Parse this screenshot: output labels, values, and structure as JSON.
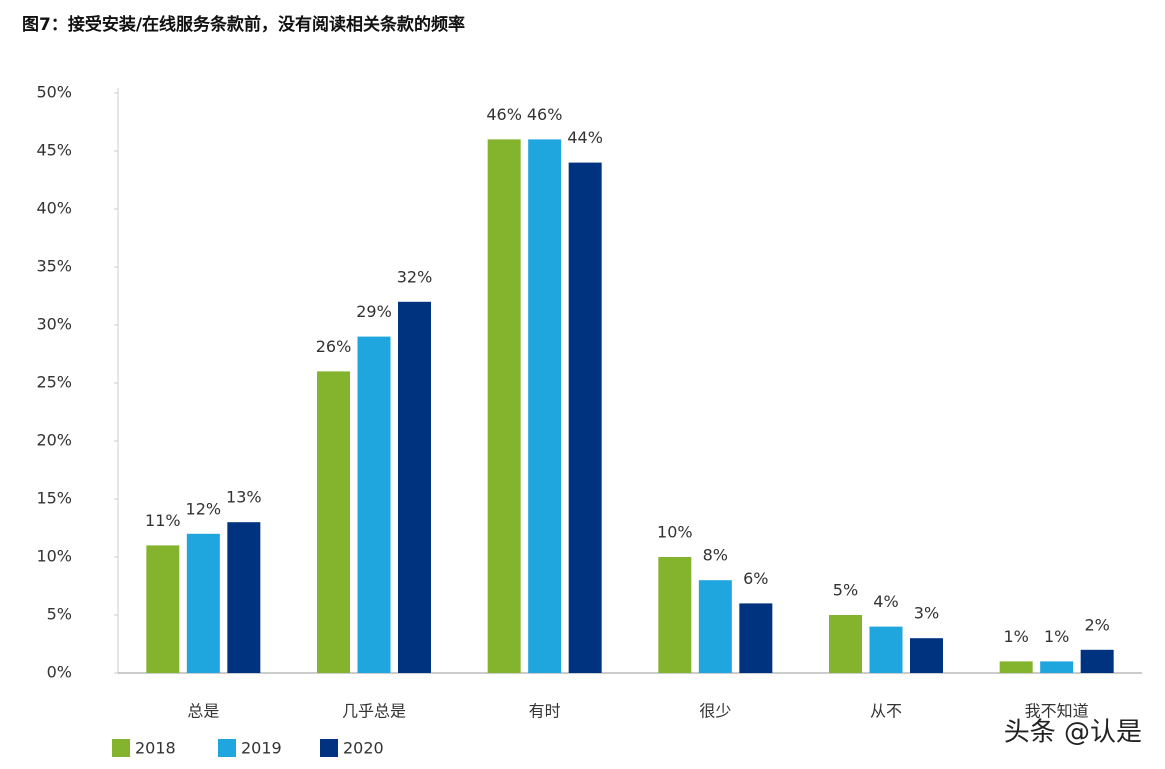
{
  "chart_data": {
    "type": "bar",
    "title": "图7：接受安装/在线服务条款前，没有阅读相关条款的频率",
    "watermark": "头条 @认是",
    "categories": [
      "总是",
      "几乎总是",
      "有时",
      "很少",
      "从不",
      "我不知道"
    ],
    "series": [
      {
        "name": "2018",
        "color": "#84b32d",
        "values": [
          11,
          26,
          46,
          10,
          5,
          1
        ],
        "value_labels": [
          "11%",
          "26%",
          "46%",
          "10%",
          "5%",
          "1%"
        ]
      },
      {
        "name": "2019",
        "color": "#1fa6de",
        "values": [
          12,
          29,
          46,
          8,
          4,
          1
        ],
        "value_labels": [
          "12%",
          "29%",
          "46%",
          "8%",
          "4%",
          "1%"
        ]
      },
      {
        "name": "2020",
        "color": "#00337f",
        "values": [
          13,
          32,
          44,
          6,
          3,
          2
        ],
        "value_labels": [
          "13%",
          "32%",
          "44%",
          "6%",
          "3%",
          "2%"
        ]
      }
    ],
    "ylim": [
      0,
      50
    ],
    "yticks": [
      {
        "value": 0,
        "label": "0%"
      },
      {
        "value": 5,
        "label": "5%"
      },
      {
        "value": 10,
        "label": "10%"
      },
      {
        "value": 15,
        "label": "15%"
      },
      {
        "value": 20,
        "label": "20%"
      },
      {
        "value": 25,
        "label": "25%"
      },
      {
        "value": 30,
        "label": "30%"
      },
      {
        "value": 35,
        "label": "35%"
      },
      {
        "value": 40,
        "label": "40%"
      },
      {
        "value": 45,
        "label": "45%"
      },
      {
        "value": 50,
        "label": "50%"
      }
    ],
    "legend": "bottom-left"
  }
}
